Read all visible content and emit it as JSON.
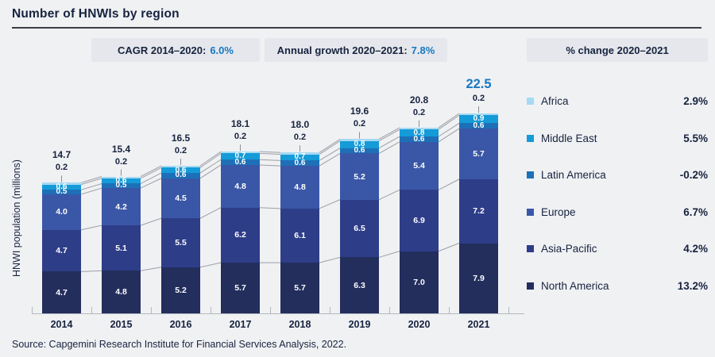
{
  "header": {
    "title": "Number of HNWIs by region"
  },
  "badges": [
    {
      "label": "CAGR 2014–2020:",
      "value": "6.0%"
    },
    {
      "label": "Annual growth 2020–2021:",
      "value": "7.8%"
    },
    {
      "label": "% change 2020–2021",
      "value": ""
    }
  ],
  "chart_data": {
    "type": "bar",
    "stacked": true,
    "title": "Number of HNWIs by region",
    "ylabel": "HNWI population (millions)",
    "xlabel": "",
    "categories": [
      "2014",
      "2015",
      "2016",
      "2017",
      "2018",
      "2019",
      "2020",
      "2021"
    ],
    "totals": [
      14.7,
      15.4,
      16.5,
      18.1,
      18.0,
      19.6,
      20.8,
      22.5
    ],
    "highlight_year": "2021",
    "legend_position": "right",
    "legend_order_top_to_bottom": [
      "Africa",
      "Middle East",
      "Latin America",
      "Europe",
      "Asia-Pacific",
      "North America"
    ],
    "series": [
      {
        "name": "North America",
        "color": "#232e5d",
        "change_2020_2021": "13.2%",
        "values": [
          4.7,
          4.8,
          5.2,
          5.7,
          5.7,
          6.3,
          7.0,
          7.9
        ]
      },
      {
        "name": "Asia-Pacific",
        "color": "#2e3d88",
        "change_2020_2021": "4.2%",
        "values": [
          4.7,
          5.1,
          5.5,
          6.2,
          6.1,
          6.5,
          6.9,
          7.2
        ]
      },
      {
        "name": "Europe",
        "color": "#3a57a7",
        "change_2020_2021": "6.7%",
        "values": [
          4.0,
          4.2,
          4.5,
          4.8,
          4.8,
          5.2,
          5.4,
          5.7
        ]
      },
      {
        "name": "Latin America",
        "color": "#1d70b7",
        "change_2020_2021": "-0.2%",
        "values": [
          0.5,
          0.5,
          0.6,
          0.6,
          0.6,
          0.6,
          0.6,
          0.6
        ]
      },
      {
        "name": "Middle East",
        "color": "#149bd8",
        "change_2020_2021": "5.5%",
        "values": [
          0.6,
          0.6,
          0.6,
          0.7,
          0.7,
          0.8,
          0.8,
          0.9
        ]
      },
      {
        "name": "Africa",
        "color": "#a6d9f2",
        "change_2020_2021": "2.9%",
        "values": [
          0.2,
          0.2,
          0.2,
          0.2,
          0.2,
          0.2,
          0.2,
          0.2
        ]
      }
    ],
    "colors": {
      "accent_blue": "#1778c0",
      "dark_text": "#17233f",
      "connector_line": "#9b9fa6",
      "baseline": "#b3b7bd",
      "badge_bg": "#e5e7ec",
      "page_bg": "#f0f1f3"
    }
  },
  "source": "Source: Capgemini Research Institute for Financial Services Analysis, 2022."
}
